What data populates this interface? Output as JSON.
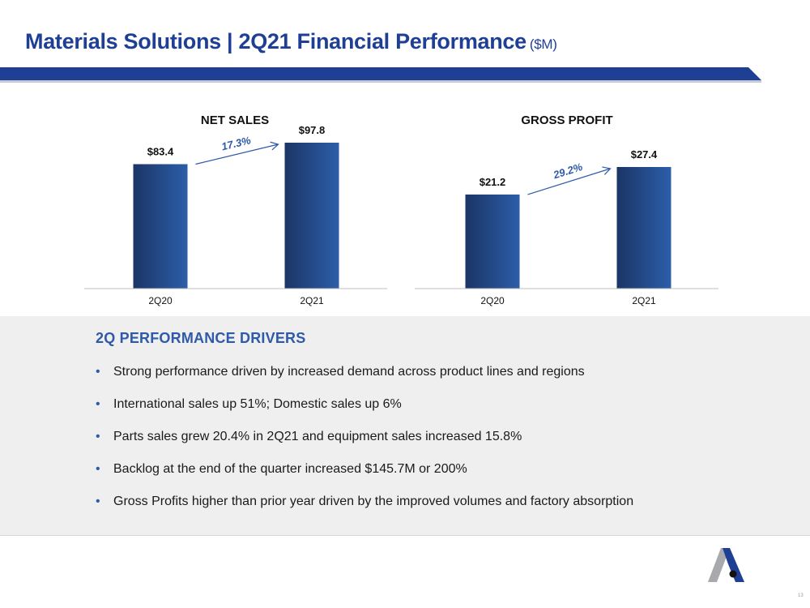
{
  "header": {
    "title": "Materials Solutions | 2Q21 Financial Performance",
    "unit": "($M)"
  },
  "chart_data": [
    {
      "type": "bar",
      "title": "NET SALES",
      "categories": [
        "2Q20",
        "2Q21"
      ],
      "values": [
        83.4,
        97.8
      ],
      "value_labels": [
        "$83.4",
        "$97.8"
      ],
      "change_label": "17.3%",
      "ylim": [
        0,
        100
      ],
      "color": "#2a5aa6"
    },
    {
      "type": "bar",
      "title": "GROSS PROFIT",
      "categories": [
        "2Q20",
        "2Q21"
      ],
      "values": [
        21.2,
        27.4
      ],
      "value_labels": [
        "$21.2",
        "$27.4"
      ],
      "change_label": "29.2%",
      "ylim": [
        0,
        32
      ],
      "color": "#2a5aa6"
    }
  ],
  "drivers": {
    "heading": "2Q PERFORMANCE DRIVERS",
    "bullet": "•",
    "items": [
      "Strong performance driven by increased demand across product lines and regions",
      "International sales up 51%; Domestic sales up 6%",
      "Parts sales grew 20.4% in 2Q21 and equipment sales increased 15.8%",
      "Backlog at the end of the quarter increased $145.7M or 200%",
      "Gross Profits higher than prior year driven by the improved volumes and factory absorption"
    ]
  },
  "footer": {
    "page_number": "13",
    "logo_icon": "company-logo-icon"
  }
}
